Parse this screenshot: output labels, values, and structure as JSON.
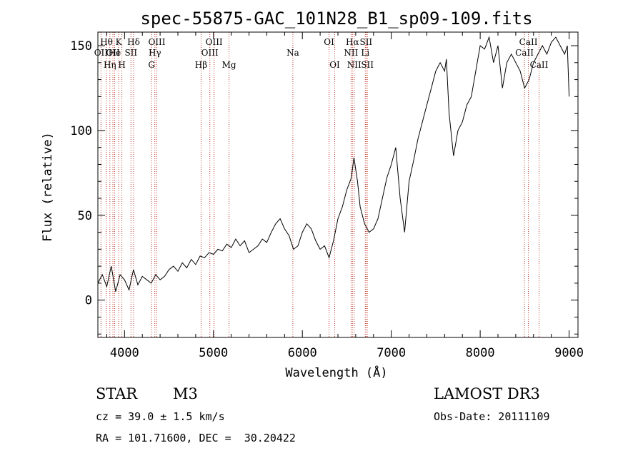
{
  "chart_data": {
    "type": "line",
    "title": "spec-55875-GAC_101N28_B1_sp09-109.fits",
    "xlabel": "Wavelength (Å)",
    "ylabel": "Flux (relative)",
    "xlim": [
      3700,
      9100
    ],
    "ylim": [
      -22,
      158
    ],
    "xticks": [
      4000,
      5000,
      6000,
      7000,
      8000,
      9000
    ],
    "yticks": [
      0,
      50,
      100,
      150
    ],
    "series": [
      {
        "name": "flux",
        "x": [
          3700,
          3750,
          3800,
          3850,
          3900,
          3950,
          4000,
          4050,
          4100,
          4150,
          4200,
          4250,
          4300,
          4350,
          4400,
          4450,
          4500,
          4550,
          4600,
          4650,
          4700,
          4750,
          4800,
          4850,
          4900,
          4950,
          5000,
          5050,
          5100,
          5150,
          5200,
          5250,
          5300,
          5350,
          5400,
          5450,
          5500,
          5550,
          5600,
          5650,
          5700,
          5750,
          5800,
          5850,
          5900,
          5950,
          6000,
          6050,
          6100,
          6150,
          6200,
          6250,
          6300,
          6350,
          6400,
          6450,
          6500,
          6550,
          6580,
          6620,
          6650,
          6700,
          6750,
          6800,
          6850,
          6900,
          6950,
          7000,
          7050,
          7100,
          7150,
          7200,
          7250,
          7300,
          7350,
          7400,
          7450,
          7500,
          7550,
          7600,
          7620,
          7650,
          7700,
          7750,
          7800,
          7850,
          7900,
          7950,
          8000,
          8050,
          8100,
          8150,
          8200,
          8250,
          8300,
          8350,
          8400,
          8450,
          8500,
          8550,
          8600,
          8650,
          8700,
          8750,
          8800,
          8850,
          8900,
          8950,
          8980,
          9000
        ],
        "values": [
          10,
          15,
          8,
          20,
          5,
          15,
          12,
          6,
          18,
          9,
          14,
          12,
          10,
          15,
          12,
          14,
          18,
          20,
          17,
          22,
          19,
          24,
          21,
          26,
          25,
          28,
          27,
          30,
          29,
          33,
          31,
          36,
          32,
          35,
          28,
          30,
          32,
          36,
          34,
          40,
          45,
          48,
          42,
          38,
          30,
          32,
          40,
          45,
          42,
          35,
          30,
          32,
          25,
          35,
          48,
          55,
          65,
          72,
          84,
          70,
          55,
          45,
          40,
          42,
          48,
          60,
          72,
          80,
          90,
          60,
          40,
          70,
          82,
          95,
          105,
          115,
          125,
          135,
          140,
          135,
          142,
          110,
          85,
          100,
          105,
          115,
          120,
          135,
          150,
          148,
          155,
          140,
          150,
          125,
          140,
          145,
          140,
          135,
          125,
          130,
          140,
          145,
          150,
          145,
          152,
          155,
          150,
          145,
          150,
          120
        ]
      }
    ],
    "lines": [
      {
        "x": 3735,
        "labels": [
          {
            "text": "OII",
            "row": 2
          }
        ]
      },
      {
        "x": 3797,
        "labels": [
          {
            "text": "Hθ",
            "row": 1
          }
        ]
      },
      {
        "x": 3835,
        "labels": [
          {
            "text": "Hη",
            "row": 3
          }
        ]
      },
      {
        "x": 3869,
        "labels": [
          {
            "text": "OII",
            "row": 2
          }
        ]
      },
      {
        "x": 3889,
        "labels": [
          {
            "text": "He",
            "row": 2
          }
        ]
      },
      {
        "x": 3934,
        "labels": [
          {
            "text": "K",
            "row": 1
          }
        ]
      },
      {
        "x": 3970,
        "labels": [
          {
            "text": "H",
            "row": 3
          }
        ]
      },
      {
        "x": 4072,
        "labels": [
          {
            "text": "SII",
            "row": 2
          }
        ]
      },
      {
        "x": 4102,
        "labels": [
          {
            "text": "Hδ",
            "row": 1
          }
        ]
      },
      {
        "x": 4304,
        "labels": [
          {
            "text": "G",
            "row": 3
          }
        ]
      },
      {
        "x": 4341,
        "labels": [
          {
            "text": "Hγ",
            "row": 2
          }
        ]
      },
      {
        "x": 4363,
        "labels": [
          {
            "text": "OIII",
            "row": 1
          }
        ]
      },
      {
        "x": 4861,
        "labels": [
          {
            "text": "Hβ",
            "row": 3
          }
        ]
      },
      {
        "x": 4959,
        "labels": [
          {
            "text": "OIII",
            "row": 2
          }
        ]
      },
      {
        "x": 5007,
        "labels": [
          {
            "text": "OIII",
            "row": 1
          }
        ]
      },
      {
        "x": 5175,
        "labels": [
          {
            "text": "Mg",
            "row": 3
          }
        ]
      },
      {
        "x": 5893,
        "labels": [
          {
            "text": "Na",
            "row": 2
          }
        ]
      },
      {
        "x": 6300,
        "labels": [
          {
            "text": "OI",
            "row": 1
          }
        ]
      },
      {
        "x": 6364,
        "labels": [
          {
            "text": "OI",
            "row": 3
          }
        ]
      },
      {
        "x": 6548,
        "labels": [
          {
            "text": "NII",
            "row": 2
          }
        ]
      },
      {
        "x": 6563,
        "labels": [
          {
            "text": "Hα",
            "row": 1
          }
        ]
      },
      {
        "x": 6583,
        "labels": [
          {
            "text": "NII",
            "row": 3
          }
        ]
      },
      {
        "x": 6708,
        "labels": [
          {
            "text": "Li",
            "row": 2
          }
        ]
      },
      {
        "x": 6716,
        "labels": [
          {
            "text": "SII",
            "row": 1
          }
        ]
      },
      {
        "x": 6731,
        "labels": [
          {
            "text": "SII",
            "row": 3
          }
        ]
      },
      {
        "x": 8498,
        "labels": [
          {
            "text": "CaII",
            "row": 2
          }
        ]
      },
      {
        "x": 8542,
        "labels": [
          {
            "text": "CaII",
            "row": 1
          }
        ]
      },
      {
        "x": 8662,
        "labels": [
          {
            "text": "CaII",
            "row": 3
          }
        ]
      }
    ]
  },
  "info": {
    "object_class": "STAR",
    "subclass": "M3",
    "survey": "LAMOST DR3",
    "redshift": "cz = 39.0 ± 1.5 km/s",
    "obs_date": "Obs-Date: 20111109",
    "coords": "RA = 101.71600, DEC =  30.20422"
  }
}
